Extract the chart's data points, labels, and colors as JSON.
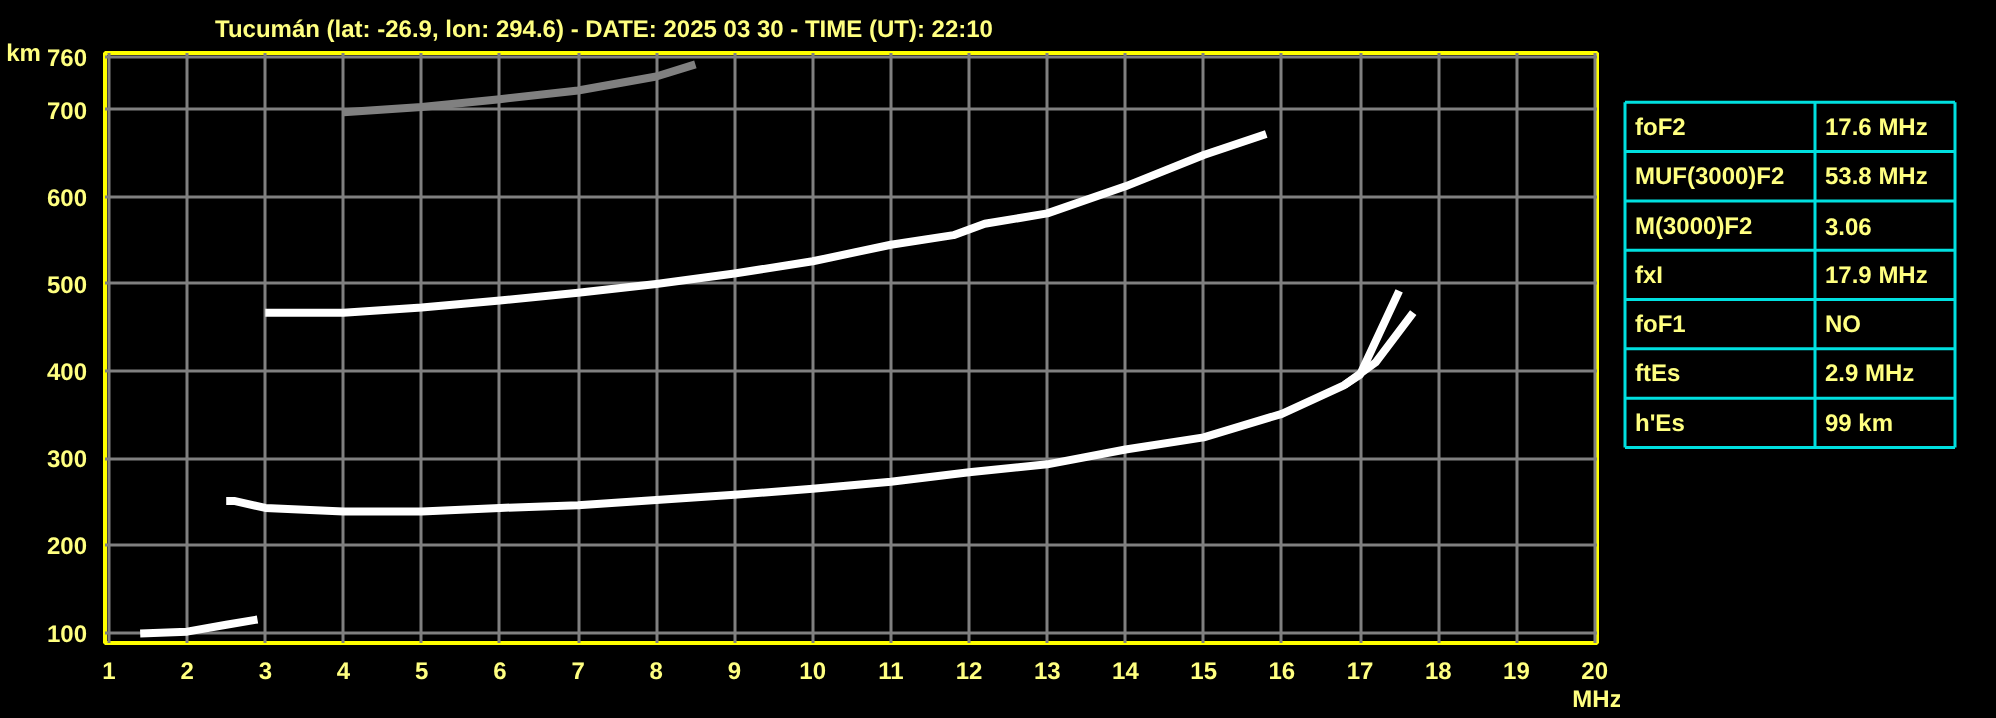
{
  "chart_data": [
    {
      "type": "line",
      "title": "Tucumán (lat: -26.9, lon: 294.6) - DATE: 2025 03 30 - TIME (UT): 22:10",
      "xlabel": "MHz",
      "ylabel": "km",
      "xlim": [
        0.95,
        20.03
      ],
      "ylim": [
        88,
        765
      ],
      "xticks": [
        1,
        2,
        3,
        4,
        5,
        6,
        7,
        8,
        9,
        10,
        11,
        12,
        13,
        14,
        15,
        16,
        17,
        18,
        19,
        20
      ],
      "yticks": [
        100,
        200,
        300,
        400,
        500,
        600,
        700,
        760
      ],
      "grid": true,
      "marker": "none",
      "line_style": "solid",
      "series": [
        {
          "color": "#ffffff",
          "x": [
            2.5,
            2.6,
            3,
            4,
            5,
            6,
            7,
            8,
            9,
            10,
            11,
            12,
            13,
            14,
            15,
            16,
            16.8,
            17,
            17.5
          ],
          "values": [
            251,
            251,
            243,
            239,
            239,
            243,
            246,
            252,
            258,
            265,
            273,
            284,
            293,
            310,
            324,
            351,
            384,
            396,
            492
          ]
        },
        {
          "color": "#ffffff",
          "x": [
            16.8,
            17.2,
            17.68
          ],
          "values": [
            384,
            410,
            467
          ]
        },
        {
          "color": "#ffffff",
          "x": [
            3,
            4,
            5,
            6,
            7,
            8,
            9,
            10,
            11,
            11.8,
            12.2,
            13,
            14,
            15,
            15.8
          ],
          "values": [
            467,
            467,
            473,
            481,
            490,
            500,
            512,
            526,
            545,
            556,
            569,
            581,
            612,
            648,
            672
          ]
        },
        {
          "color": "#ffffff",
          "x": [
            1.4,
            2,
            2.5,
            2.9
          ],
          "values": [
            99,
            101,
            109,
            115
          ]
        },
        {
          "color": "#808080",
          "x": [
            4,
            5,
            6,
            7,
            8,
            8.5
          ],
          "values": [
            697,
            703,
            712,
            722,
            738,
            752
          ]
        }
      ]
    },
    {
      "type": "other",
      "annotations": [
        "foF2",
        "17.6 MHz",
        "MUF(3000)F2",
        "53.8 MHz",
        "M(3000)F2",
        "3.06",
        "fxI",
        "17.9 MHz",
        "foF1",
        "NO",
        "ftEs",
        "2.9 MHz",
        "h'Es",
        "99 km"
      ]
    }
  ]
}
